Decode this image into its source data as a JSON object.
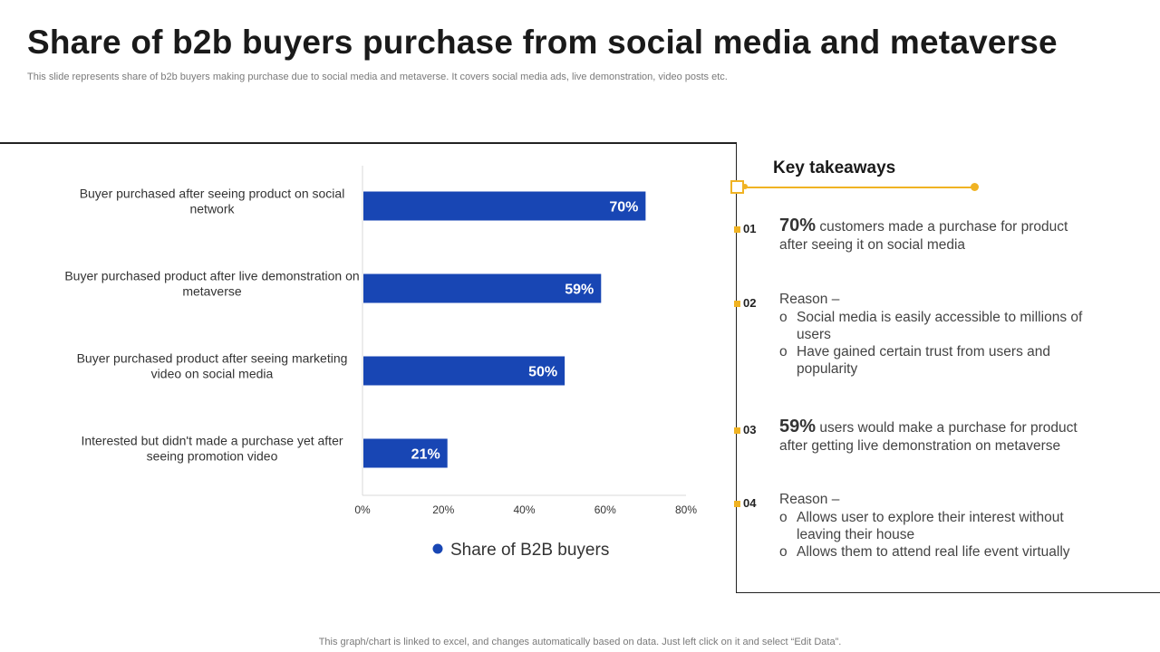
{
  "header": {
    "title": "Share of b2b buyers purchase from social media and metaverse",
    "subtitle": "This slide represents share of b2b buyers making purchase due to social media and metaverse. It covers social media ads, live demonstration, video posts etc."
  },
  "chart_data": {
    "type": "bar",
    "orientation": "horizontal",
    "categories": [
      [
        "Buyer purchased after seeing product on social",
        "network"
      ],
      [
        "Buyer purchased product after live demonstration on",
        "metaverse"
      ],
      [
        "Buyer purchased product after seeing marketing",
        "video on social media"
      ],
      [
        "Interested but didn't made a purchase yet after",
        "seeing promotion video"
      ]
    ],
    "series": [
      {
        "name": "Share of B2B buyers",
        "values": [
          70,
          59,
          50,
          21
        ],
        "color": "#1846b4"
      }
    ],
    "value_labels": [
      "70%",
      "59%",
      "50%",
      "21%"
    ],
    "xlim": [
      0,
      80
    ],
    "xticks": [
      "0%",
      "20%",
      "40%",
      "60%",
      "80%"
    ],
    "grid": false,
    "legend": "bottom"
  },
  "takeaways": {
    "title": "Key takeaways",
    "accent_color": "#f0b323",
    "items": [
      {
        "num": "01",
        "big": "70%",
        "text": " customers made a purchase for product after seeing it on social media"
      },
      {
        "num": "02",
        "lead": "Reason –",
        "subs": [
          "Social media is easily accessible to millions of users",
          "Have gained certain trust from users and popularity"
        ]
      },
      {
        "num": "03",
        "big": "59%",
        "text": " users would make a purchase for product after getting live demonstration on metaverse"
      },
      {
        "num": "04",
        "lead": "Reason –",
        "subs": [
          "Allows user to explore their interest without leaving their house",
          "Allows them to attend real life event virtually"
        ]
      }
    ]
  },
  "footer": "This graph/chart is linked to excel, and changes automatically based on data. Just left click on it and select “Edit Data”."
}
